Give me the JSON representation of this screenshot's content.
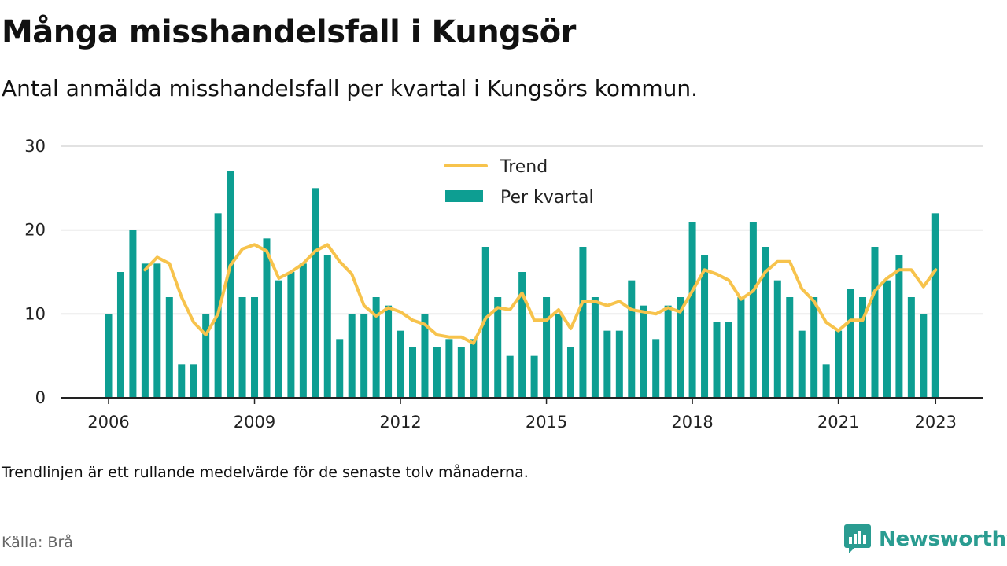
{
  "title": "Många misshandelsfall i Kungsör",
  "subtitle": "Antal anmälda misshandelsfall per kvartal i Kungsörs kommun.",
  "footnote": "Trendlinjen är ett rullande medelvärde för de senaste tolv månaderna.",
  "source": "Källa: Brå",
  "brand": {
    "name": "Newsworthy",
    "icon": "bar-chart-speech-bubble-icon"
  },
  "colors": {
    "bar": "#0d9e92",
    "trend": "#f7c34c",
    "grid": "#d9d9d9",
    "axis": "#222222",
    "brand": "#2a9c91"
  },
  "chart_data": {
    "type": "bar",
    "x_unit": "quarter",
    "x_start": "2006 Q1",
    "xticks": [
      "2006",
      "2009",
      "2012",
      "2015",
      "2018",
      "2021",
      "2023"
    ],
    "ylim": [
      0,
      30
    ],
    "yticks": [
      0,
      10,
      20,
      30
    ],
    "grid": true,
    "legend_position": "top-center",
    "series": [
      {
        "name": "Per kvartal",
        "type": "bar",
        "values": [
          10,
          15,
          20,
          16,
          16,
          12,
          4,
          4,
          10,
          22,
          27,
          12,
          12,
          19,
          14,
          15,
          16,
          25,
          17,
          7,
          10,
          10,
          12,
          11,
          8,
          6,
          10,
          6,
          7,
          6,
          7,
          18,
          12,
          5,
          15,
          5,
          12,
          10,
          6,
          18,
          12,
          8,
          8,
          14,
          11,
          7,
          11,
          12,
          21,
          17,
          9,
          9,
          12,
          21,
          18,
          14,
          12,
          8,
          12,
          4,
          8,
          13,
          12,
          18,
          14,
          17,
          12,
          10,
          22
        ]
      },
      {
        "name": "Trend",
        "type": "line",
        "values": [
          null,
          null,
          null,
          15.25,
          16.75,
          16.0,
          12.0,
          9.0,
          7.5,
          10.0,
          15.75,
          17.75,
          18.25,
          17.5,
          14.25,
          15.0,
          16.0,
          17.5,
          18.25,
          16.25,
          14.75,
          11.0,
          9.75,
          10.75,
          10.25,
          9.25,
          8.75,
          7.5,
          7.25,
          7.25,
          6.5,
          9.5,
          10.75,
          10.5,
          12.5,
          9.25,
          9.25,
          10.5,
          8.25,
          11.5,
          11.5,
          11.0,
          11.5,
          10.5,
          10.25,
          10.0,
          10.75,
          10.25,
          12.75,
          15.25,
          14.75,
          14.0,
          11.75,
          12.75,
          15.0,
          16.25,
          16.25,
          13.0,
          11.5,
          9.0,
          8.0,
          9.25,
          9.25,
          12.75,
          14.25,
          15.25,
          15.25,
          13.25,
          15.25
        ]
      }
    ]
  }
}
